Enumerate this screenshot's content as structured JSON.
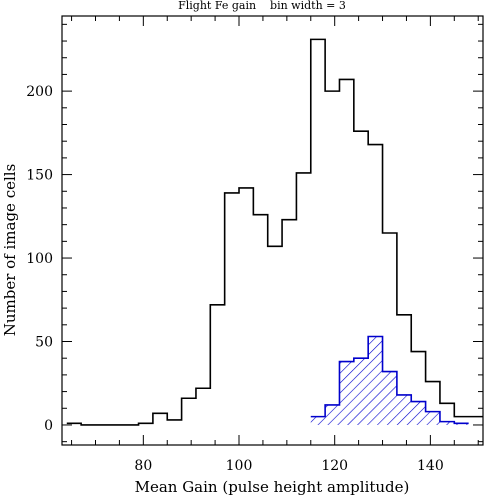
{
  "chart_data": {
    "type": "histogram",
    "title": "Flight Fe gain    bin width = 3",
    "xlabel": "Mean Gain (pulse height amplitude)",
    "ylabel": "Number of image cells",
    "xlim": [
      63,
      151
    ],
    "ylim": [
      -12,
      245
    ],
    "x_ticks": [
      80,
      100,
      120,
      140
    ],
    "y_ticks": [
      0,
      50,
      100,
      150,
      200
    ],
    "bin_width": 3,
    "grid": false,
    "series": [
      {
        "style": "black-step",
        "color": "#000000",
        "bin_starts": [
          64,
          67,
          70,
          73,
          76,
          79,
          82,
          85,
          88,
          91,
          94,
          97,
          100,
          103,
          106,
          109,
          112,
          115,
          118,
          121,
          124,
          127,
          130,
          133,
          136,
          139,
          142,
          145,
          148
        ],
        "counts": [
          1,
          0,
          0,
          0,
          0,
          1,
          7,
          3,
          16,
          22,
          72,
          139,
          142,
          126,
          107,
          123,
          151,
          231,
          200,
          207,
          176,
          168,
          115,
          66,
          44,
          26,
          13,
          5,
          5
        ]
      },
      {
        "style": "blue-hatched",
        "color": "#0000cc",
        "bin_starts": [
          115,
          118,
          121,
          124,
          127,
          130,
          133,
          136,
          139,
          142,
          145
        ],
        "counts": [
          5,
          12,
          38,
          40,
          53,
          32,
          18,
          14,
          8,
          2,
          1
        ]
      }
    ]
  }
}
